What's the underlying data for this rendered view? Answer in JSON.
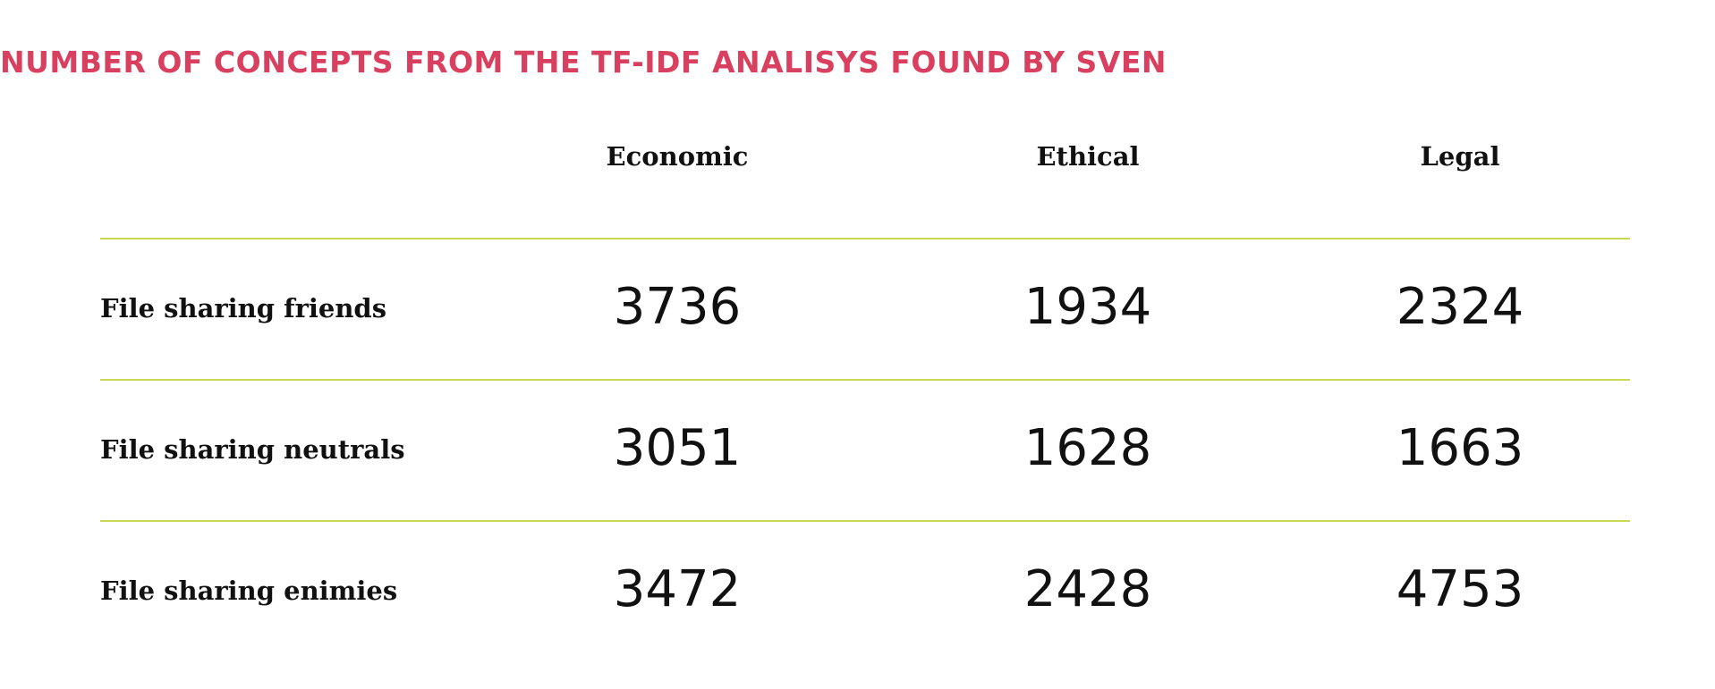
{
  "title": "NUMBER OF CONCEPTS FROM THE TF-IDF ANALISYS FOUND BY SVEN",
  "colors": {
    "title": "#d9405f",
    "rule": "#b5cc18",
    "text": "#111111"
  },
  "chart_data": {
    "type": "table",
    "title": "NUMBER OF CONCEPTS FROM THE TF-IDF ANALISYS FOUND BY SVEN",
    "columns": [
      "Economic",
      "Ethical",
      "Legal"
    ],
    "rows": [
      {
        "label": "File sharing friends",
        "values": [
          3736,
          1934,
          2324
        ]
      },
      {
        "label": "File sharing neutrals",
        "values": [
          3051,
          1628,
          1663
        ]
      },
      {
        "label": "File sharing enimies",
        "values": [
          3472,
          2428,
          4753
        ]
      }
    ]
  }
}
